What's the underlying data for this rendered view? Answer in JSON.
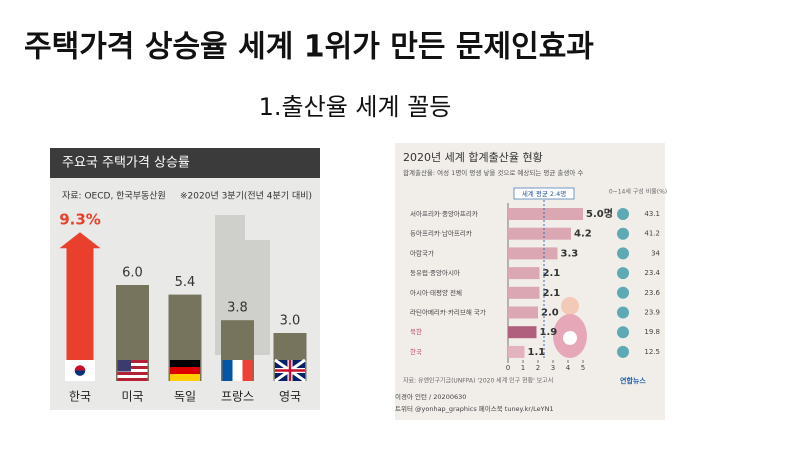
{
  "title": "주택가격 상승율 세계 1위가 만든 문제인효과",
  "subtitle": "1.출산율 세계 꼴등",
  "chart_data": [
    {
      "type": "bar",
      "title": "주요국 주택가격 상승률",
      "source": "자료: OECD, 한국부동산원",
      "note": "※2020년 3분기(전년 4분기 대비)",
      "categories": [
        "한국",
        "미국",
        "독일",
        "프랑스",
        "영국"
      ],
      "values": [
        9.3,
        6.0,
        5.4,
        3.8,
        3.0
      ],
      "value_labels": [
        "9.3%",
        "6.0",
        "5.4",
        "3.8",
        "3.0"
      ],
      "colors": [
        "#e8402c",
        "#77745e",
        "#77745e",
        "#77745e",
        "#77745e"
      ]
    },
    {
      "type": "barh",
      "title": "2020년 세계 합계출산율 현황",
      "subtitle": "합계출산율: 여성 1명이 평생 낳을 것으로 예상되는 평균 출생아 수",
      "categories": [
        "서아프리카·중앙아프리카",
        "동아프리카·남아프리카",
        "아랍국가",
        "동유럽·중앙아시아",
        "아시아·태평양 전체",
        "라틴아메리카·카리브해 국가",
        "북한",
        "한국"
      ],
      "values": [
        5.0,
        4.2,
        3.3,
        2.1,
        2.1,
        2.0,
        1.9,
        1.1
      ],
      "value_labels": [
        "5.0명",
        "4.2",
        "3.3",
        "2.1",
        "2.1",
        "2.0",
        "1.9",
        "1.1"
      ],
      "colors": [
        "#dba7b3",
        "#dba7b3",
        "#dba7b3",
        "#dba7b3",
        "#dba7b3",
        "#dba7b3",
        "#b0607c",
        "#e2b3bf"
      ],
      "xlim": [
        0,
        5
      ],
      "xticks": [
        0,
        1,
        2,
        3,
        4,
        5
      ],
      "reference": {
        "value": 2.4,
        "label": "세계 평균 2.4명"
      },
      "share": {
        "name": "0~14세 구성 비율(%)",
        "color": "#5ea9b4",
        "values": [
          43.1,
          41.2,
          34.0,
          23.4,
          23.6,
          23.9,
          19.8,
          12.5
        ]
      },
      "source": "자료: 유엔인구기금(UNFPA) '2020 세계 인구 현황' 보고서",
      "credit": "이경아 인턴 / 20200630",
      "social": "트위터 @yonhap_graphics  페이스북 tuney.kr/LeYN1",
      "brand": "연합뉴스"
    }
  ]
}
